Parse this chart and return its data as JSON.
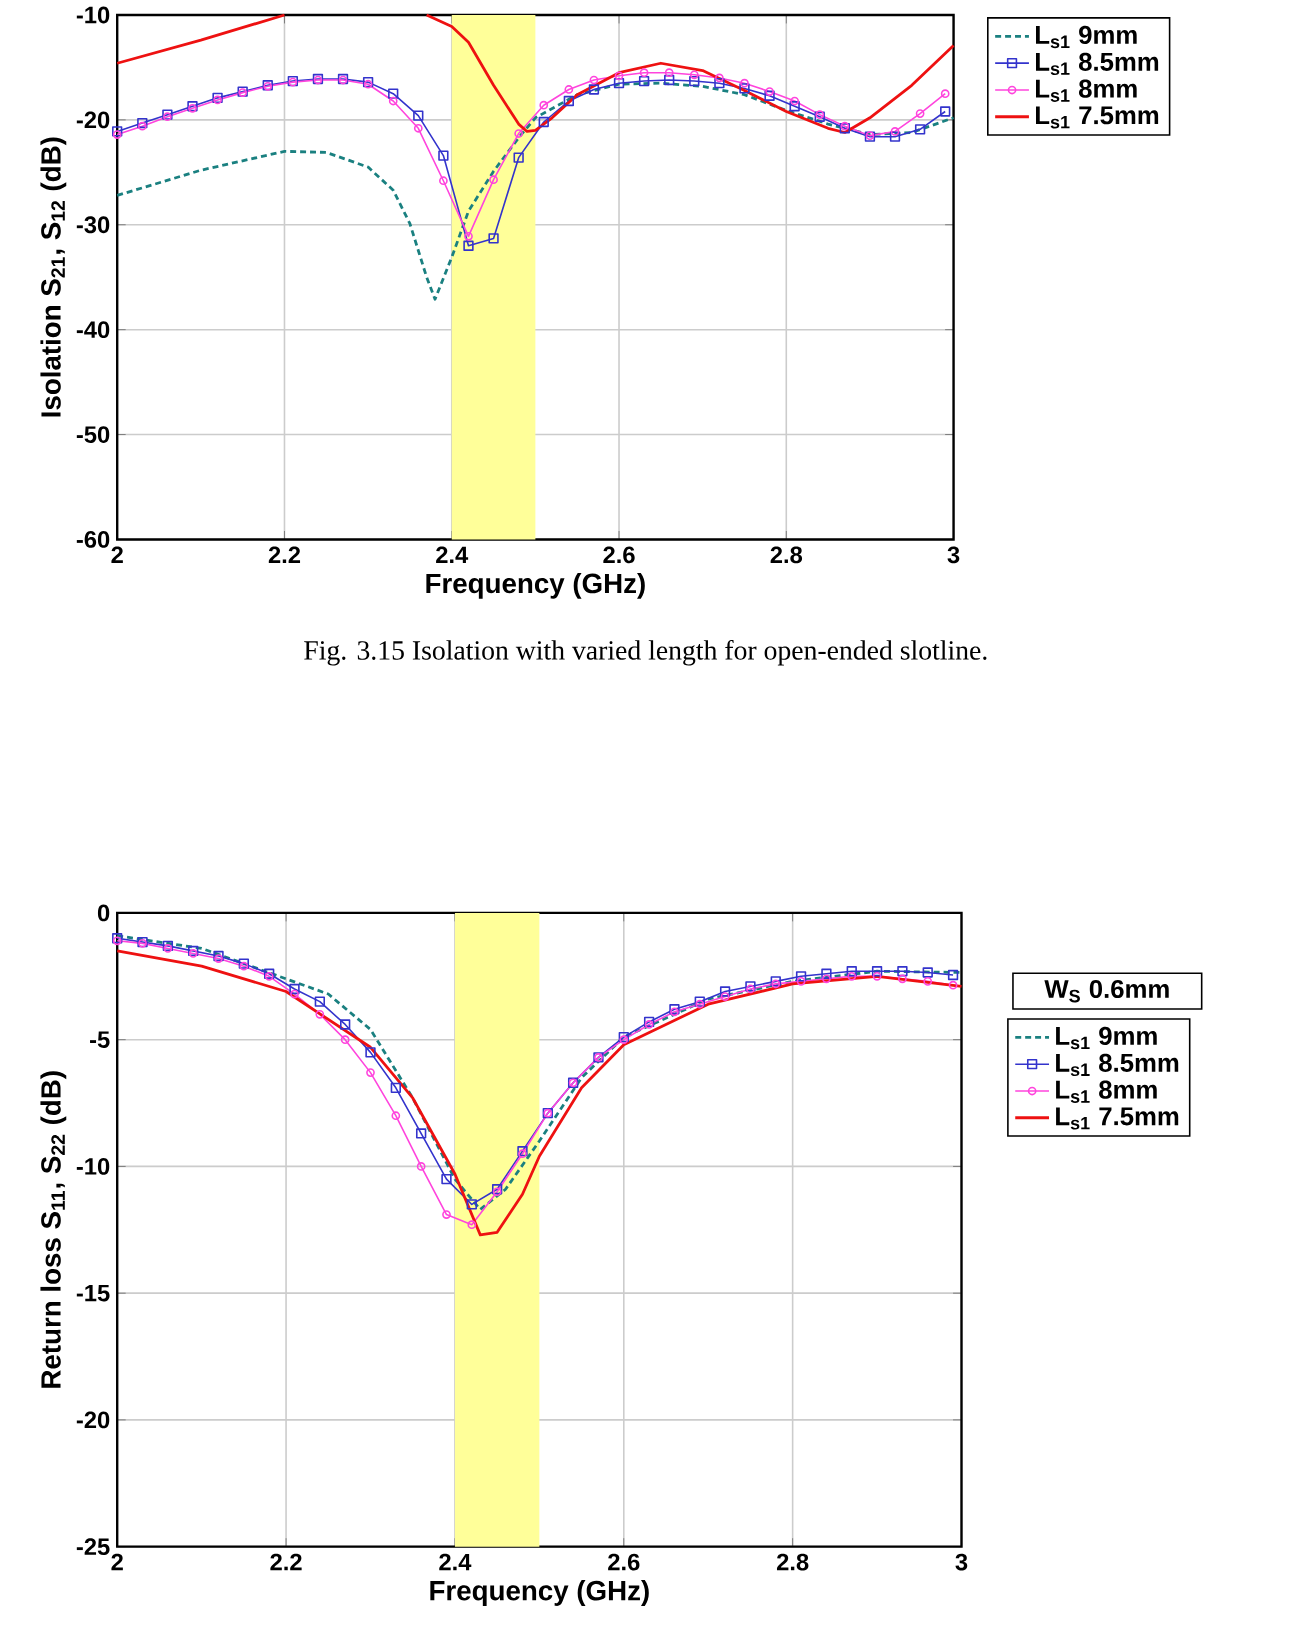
{
  "chart_data": [
    {
      "type": "line",
      "xlabel": "Frequency (GHz)",
      "ylabel": "Isolation S$_{21}$, S$_{12}$ (dB)",
      "xlim": [
        2,
        3
      ],
      "ylim": [
        -60,
        -10
      ],
      "xticks": [
        2,
        2.2,
        2.4,
        2.6,
        2.8,
        3
      ],
      "yticks": [
        -60,
        -50,
        -40,
        -30,
        -20,
        -10
      ],
      "grid": true,
      "legend": "right",
      "bands": [
        {
          "axis": "x",
          "from": 2.4,
          "to": 2.5,
          "color": "#ffff99"
        }
      ],
      "annotations": [
        "Fig. 3.15 Isolation with varied length for open-ended slotline."
      ],
      "series": [
        {
          "name": "L$_{s1}$   9mm",
          "color": "#1a8080",
          "line_style": "dashed",
          "marker": "none",
          "x": [
            2.0,
            2.1,
            2.2,
            2.25,
            2.3,
            2.33,
            2.35,
            2.37,
            2.38,
            2.4,
            2.42,
            2.45,
            2.48,
            2.5,
            2.55,
            2.6,
            2.65,
            2.7,
            2.75,
            2.8,
            2.85,
            2.9,
            2.95,
            3.0
          ],
          "values": [
            -27.2,
            -24.8,
            -23.0,
            -23.1,
            -24.5,
            -26.7,
            -29.9,
            -35.0,
            -37.1,
            -33.1,
            -28.7,
            -24.9,
            -21.7,
            -19.8,
            -17.6,
            -16.6,
            -16.5,
            -16.8,
            -17.6,
            -19.1,
            -20.4,
            -21.4,
            -21.2,
            -19.8
          ]
        },
        {
          "name": "L$_{s1}$ 8.5mm",
          "color": "#3333cc",
          "line_style": "solid",
          "marker": "square",
          "x": [
            2.0,
            2.03,
            2.06,
            2.09,
            2.12,
            2.15,
            2.18,
            2.21,
            2.24,
            2.27,
            2.3,
            2.33,
            2.36,
            2.39,
            2.42,
            2.45,
            2.48,
            2.51,
            2.54,
            2.57,
            2.6,
            2.63,
            2.66,
            2.69,
            2.72,
            2.75,
            2.78,
            2.81,
            2.84,
            2.87,
            2.9,
            2.93,
            2.96,
            2.99
          ],
          "values": [
            -21.1,
            -20.3,
            -19.5,
            -18.7,
            -17.9,
            -17.3,
            -16.7,
            -16.3,
            -16.1,
            -16.1,
            -16.4,
            -17.5,
            -19.6,
            -23.4,
            -32.0,
            -31.3,
            -23.6,
            -20.2,
            -18.2,
            -17.1,
            -16.5,
            -16.3,
            -16.2,
            -16.3,
            -16.5,
            -17.0,
            -17.7,
            -18.7,
            -19.7,
            -20.8,
            -21.6,
            -21.6,
            -20.9,
            -19.2
          ]
        },
        {
          "name": "L$_{s1}$   8mm",
          "color": "#ff44dd",
          "line_style": "solid",
          "marker": "circle",
          "x": [
            2.0,
            2.03,
            2.06,
            2.09,
            2.12,
            2.15,
            2.18,
            2.21,
            2.24,
            2.27,
            2.3,
            2.33,
            2.36,
            2.39,
            2.42,
            2.45,
            2.48,
            2.51,
            2.54,
            2.57,
            2.6,
            2.63,
            2.66,
            2.69,
            2.72,
            2.75,
            2.78,
            2.81,
            2.84,
            2.87,
            2.9,
            2.93,
            2.96,
            2.99
          ],
          "values": [
            -21.4,
            -20.6,
            -19.7,
            -18.9,
            -18.1,
            -17.4,
            -16.8,
            -16.4,
            -16.2,
            -16.2,
            -16.6,
            -18.2,
            -20.8,
            -25.8,
            -31.1,
            -25.7,
            -21.3,
            -18.6,
            -17.1,
            -16.2,
            -15.8,
            -15.5,
            -15.5,
            -15.7,
            -16.0,
            -16.5,
            -17.3,
            -18.2,
            -19.5,
            -20.6,
            -21.5,
            -21.1,
            -19.4,
            -17.5
          ]
        },
        {
          "name": "L$_{s1}$ 7.5mm",
          "color": "#ee1111",
          "line_style": "solid",
          "marker": "none",
          "x": [
            2.0,
            2.1,
            2.2,
            2.3,
            2.37,
            2.4,
            2.42,
            2.45,
            2.48,
            2.49,
            2.5,
            2.52,
            2.55,
            2.6,
            2.65,
            2.7,
            2.75,
            2.8,
            2.85,
            2.87,
            2.9,
            2.95,
            3.0
          ],
          "values": [
            -14.6,
            -12.4,
            -10.0,
            null,
            -10.0,
            -11.1,
            -12.6,
            -16.7,
            -20.4,
            -21.1,
            -21.0,
            -19.8,
            -17.6,
            -15.5,
            -14.6,
            -15.3,
            -17.2,
            -19.2,
            -20.8,
            -21.2,
            -19.8,
            -16.7,
            -12.9
          ]
        }
      ]
    },
    {
      "type": "line",
      "xlabel": "Frequency (GHz)",
      "ylabel": "Return loss S$_{11}$, S$_{22}$ (dB)",
      "xlim": [
        2,
        3
      ],
      "ylim": [
        -25,
        0
      ],
      "xticks": [
        2,
        2.2,
        2.4,
        2.6,
        2.8,
        3
      ],
      "yticks": [
        -25,
        -20,
        -15,
        -10,
        -5,
        0
      ],
      "grid": true,
      "legend": "right",
      "bands": [
        {
          "axis": "x",
          "from": 2.4,
          "to": 2.5,
          "color": "#ffff99"
        }
      ],
      "annotations": [
        "W$_{S}$  0.6mm"
      ],
      "series": [
        {
          "name": "L$_{s1}$   9mm",
          "color": "#1a8080",
          "line_style": "dashed",
          "marker": "none",
          "x": [
            2.0,
            2.1,
            2.2,
            2.25,
            2.3,
            2.35,
            2.4,
            2.43,
            2.46,
            2.5,
            2.55,
            2.6,
            2.7,
            2.8,
            2.9,
            3.0
          ],
          "values": [
            -0.9,
            -1.4,
            -2.6,
            -3.2,
            -4.6,
            -7.3,
            -10.5,
            -11.7,
            -10.9,
            -9.0,
            -6.5,
            -4.9,
            -3.4,
            -2.7,
            -2.3,
            -2.35
          ]
        },
        {
          "name": "L$_{s1}$ 8.5mm",
          "color": "#3333cc",
          "line_style": "solid",
          "marker": "square",
          "x": [
            2.0,
            2.03,
            2.06,
            2.09,
            2.12,
            2.15,
            2.18,
            2.21,
            2.24,
            2.27,
            2.3,
            2.33,
            2.36,
            2.39,
            2.42,
            2.45,
            2.48,
            2.51,
            2.54,
            2.57,
            2.6,
            2.63,
            2.66,
            2.69,
            2.72,
            2.75,
            2.78,
            2.81,
            2.84,
            2.87,
            2.9,
            2.93,
            2.96,
            2.99
          ],
          "values": [
            -1.0,
            -1.15,
            -1.3,
            -1.5,
            -1.7,
            -2.0,
            -2.4,
            -3.0,
            -3.5,
            -4.4,
            -5.5,
            -6.9,
            -8.7,
            -10.5,
            -11.5,
            -10.9,
            -9.4,
            -7.9,
            -6.7,
            -5.7,
            -4.9,
            -4.3,
            -3.8,
            -3.5,
            -3.1,
            -2.9,
            -2.7,
            -2.5,
            -2.4,
            -2.3,
            -2.3,
            -2.3,
            -2.35,
            -2.45
          ]
        },
        {
          "name": "L$_{s1}$   8mm",
          "color": "#ff44dd",
          "line_style": "solid",
          "marker": "circle",
          "x": [
            2.0,
            2.03,
            2.06,
            2.09,
            2.12,
            2.15,
            2.18,
            2.21,
            2.24,
            2.27,
            2.3,
            2.33,
            2.36,
            2.39,
            2.42,
            2.45,
            2.48,
            2.51,
            2.54,
            2.57,
            2.6,
            2.63,
            2.66,
            2.69,
            2.72,
            2.75,
            2.78,
            2.81,
            2.84,
            2.87,
            2.9,
            2.93,
            2.96,
            2.99
          ],
          "values": [
            -1.1,
            -1.2,
            -1.4,
            -1.6,
            -1.8,
            -2.1,
            -2.5,
            -3.2,
            -4.0,
            -5.0,
            -6.3,
            -8.0,
            -10.0,
            -11.9,
            -12.3,
            -11.0,
            -9.5,
            -7.9,
            -6.7,
            -5.7,
            -5.0,
            -4.4,
            -3.9,
            -3.6,
            -3.3,
            -3.0,
            -2.8,
            -2.7,
            -2.6,
            -2.5,
            -2.5,
            -2.6,
            -2.7,
            -2.85
          ]
        },
        {
          "name": "L$_{s1}$ 7.5mm",
          "color": "#ee1111",
          "line_style": "solid",
          "marker": "none",
          "x": [
            2.0,
            2.1,
            2.2,
            2.3,
            2.35,
            2.4,
            2.43,
            2.45,
            2.48,
            2.5,
            2.55,
            2.6,
            2.7,
            2.8,
            2.9,
            3.0
          ],
          "values": [
            -1.5,
            -2.1,
            -3.1,
            -5.3,
            -7.3,
            -10.3,
            -12.7,
            -12.6,
            -11.1,
            -9.6,
            -6.9,
            -5.2,
            -3.6,
            -2.8,
            -2.5,
            -2.9
          ]
        }
      ]
    }
  ]
}
